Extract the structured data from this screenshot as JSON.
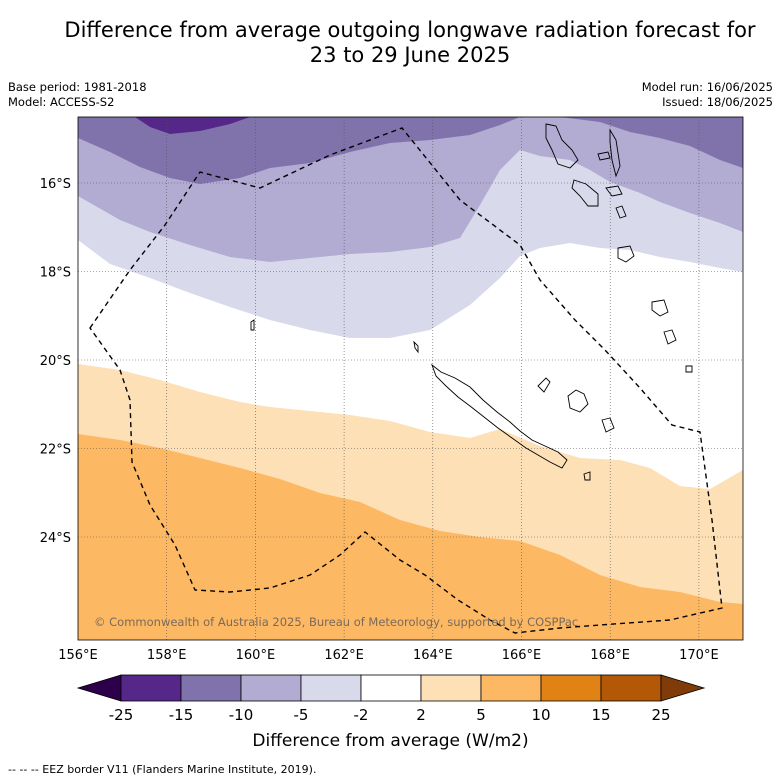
{
  "title_line1": "Difference from average outgoing longwave radiation forecast for",
  "title_line2": "23 to 29 June 2025",
  "base_period": "Base period: 1981-2018",
  "model": "Model: ACCESS-S2",
  "model_run": "Model run: 16/06/2025",
  "issued": "Issued: 18/06/2025",
  "copyright": "© Commonwealth of Australia 2025, Bureau of Meteorology, supported by COSPPac",
  "lon_labels": [
    "156°E",
    "158°E",
    "160°E",
    "162°E",
    "164°E",
    "166°E",
    "168°E",
    "170°E"
  ],
  "lat_labels": [
    "16°S",
    "18°S",
    "20°S",
    "22°S",
    "24°S"
  ],
  "colorbar": {
    "ticks": [
      "-25",
      "-15",
      "-10",
      "-5",
      "-2",
      "2",
      "5",
      "10",
      "15",
      "25"
    ],
    "colors": [
      "#2d004b",
      "#542788",
      "#8073ac",
      "#b2abd2",
      "#d8daeb",
      "#ffffff",
      "#fee0b6",
      "#fdb863",
      "#e08214",
      "#b35806",
      "#7f3b08"
    ],
    "title": "Difference from average (W/m2)"
  },
  "footnote": "--  --  -- EEZ border V11 (Flanders Marine Institute, 2019)."
}
